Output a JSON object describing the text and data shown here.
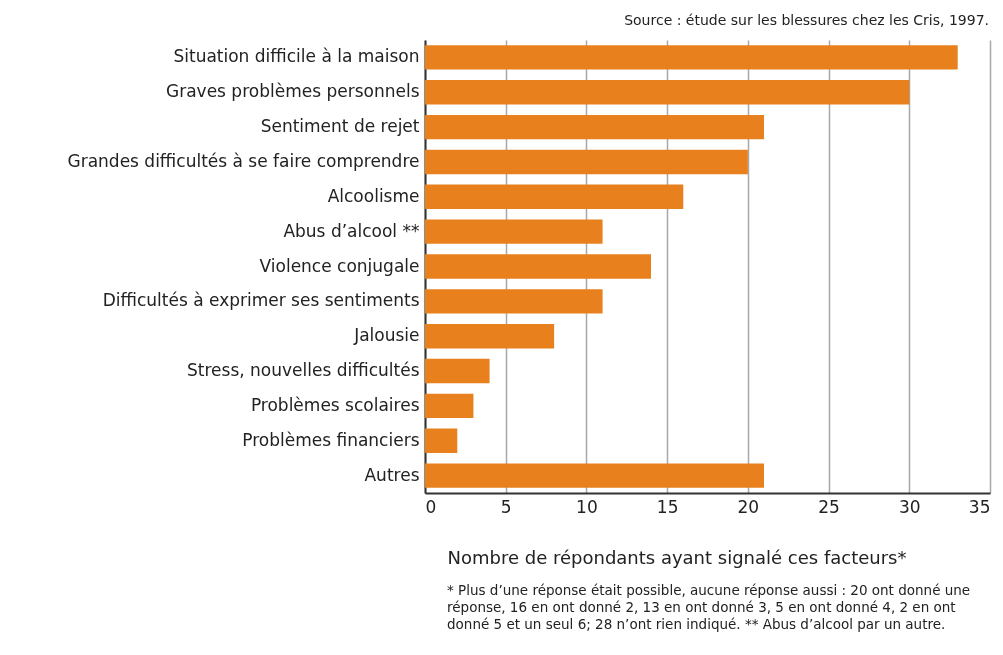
{
  "chart_data": {
    "type": "bar",
    "orientation": "horizontal",
    "categories": [
      "Situation difficile à la maison",
      "Graves problèmes personnels",
      "Sentiment de rejet",
      "Grandes difficultés à se faire comprendre",
      "Alcoolisme",
      "Abus d’alcool **",
      "Violence conjugale",
      "Difficultés à exprimer ses sentiments",
      "Jalousie",
      "Stress, nouvelles difficultés",
      "Problèmes scolaires",
      "Problèmes financiers",
      "Autres"
    ],
    "values": [
      33,
      30,
      21,
      20,
      16,
      11,
      14,
      11,
      8,
      4,
      3,
      2,
      21
    ],
    "color": "#e8801d",
    "xlim": [
      0,
      35
    ],
    "xticks": [
      0,
      5,
      10,
      15,
      20,
      25,
      30,
      35
    ],
    "grid": "x",
    "xlabel": "Nombre de répondants ayant signalé ces facteurs*",
    "annotations": [
      "Source : étude sur les blessures chez les Cris, 1997.",
      "* Plus d’une réponse était possible, aucune réponse aussi : 20 ont donné une réponse, 16 en ont donné 2, 13 en ont donné 3, 5 en ont donné 4, 2 en ont donné 5 et un seul 6; 28 n’ont rien indiqué.  ** Abus d’alcool par un autre."
    ]
  }
}
